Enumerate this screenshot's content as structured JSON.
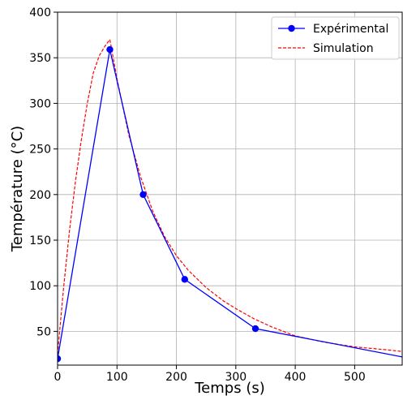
{
  "chart_data": {
    "type": "line",
    "xlabel": "Temps (s)",
    "ylabel": "Température (°C)",
    "xlim": [
      0,
      580
    ],
    "ylim": [
      13,
      400
    ],
    "xticks": [
      0,
      100,
      200,
      300,
      400,
      500
    ],
    "yticks": [
      50,
      100,
      150,
      200,
      250,
      300,
      350,
      400
    ],
    "grid": true,
    "legend_position": "top-right",
    "series": [
      {
        "name": "Expérimental",
        "style": "solid-with-markers",
        "color": "#0000ff",
        "x": [
          0,
          88,
          144,
          214,
          333,
          580
        ],
        "y": [
          20,
          359,
          200,
          107,
          53,
          22
        ]
      },
      {
        "name": "Simulation",
        "style": "dashed",
        "color": "#ff0000",
        "x": [
          0,
          10,
          20,
          30,
          40,
          50,
          60,
          70,
          80,
          88,
          100,
          120,
          140,
          160,
          180,
          200,
          220,
          250,
          280,
          300,
          330,
          360,
          400,
          450,
          500,
          550,
          580
        ],
        "y": [
          25,
          97,
          160,
          214,
          260,
          300,
          333,
          352,
          363,
          370,
          327,
          265,
          219,
          182,
          154,
          133,
          117,
          98,
          83,
          75,
          64,
          55,
          45,
          38,
          33,
          30,
          28
        ]
      }
    ]
  }
}
